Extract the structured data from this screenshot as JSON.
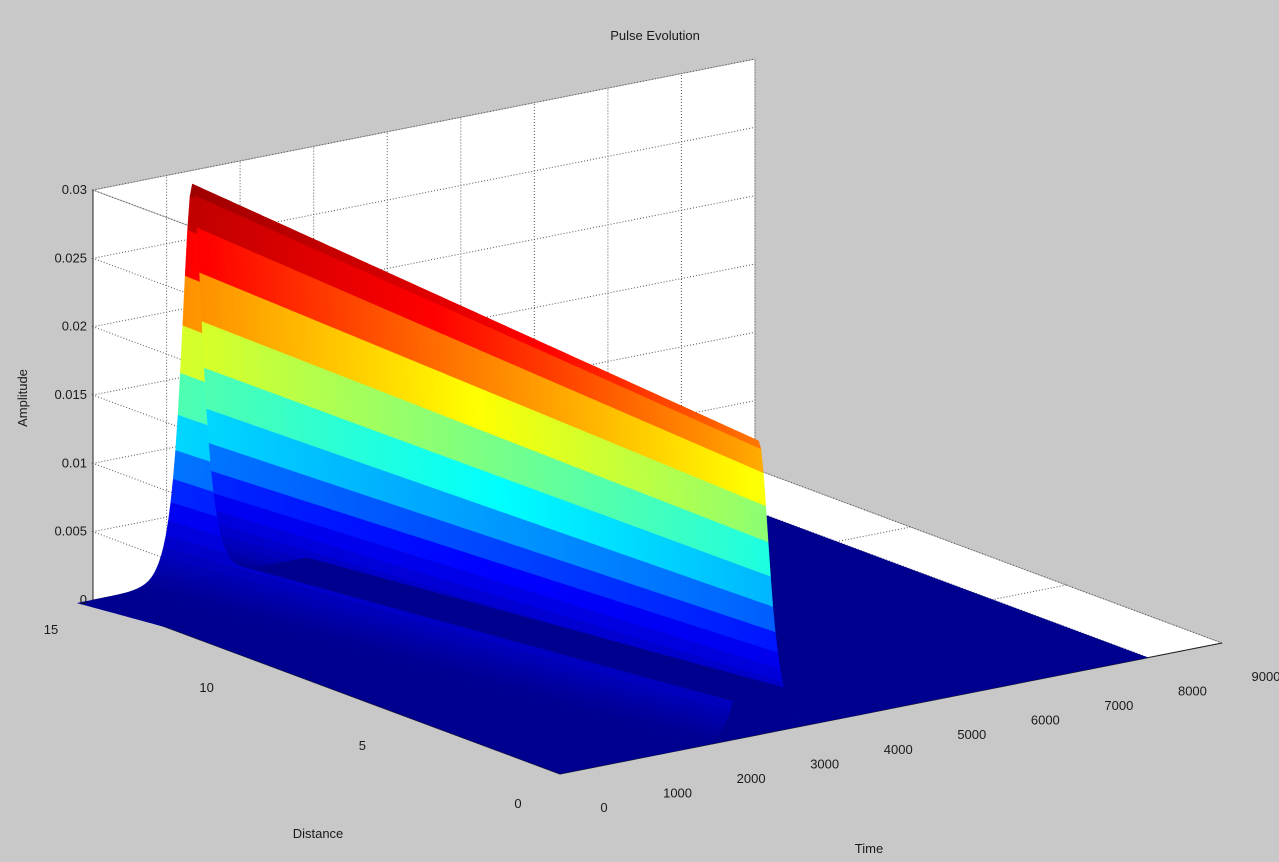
{
  "chart_data": {
    "type": "surface",
    "title": "Pulse Evolution",
    "xlabel": "Time",
    "ylabel": "Distance",
    "zlabel": "Amplitude",
    "xlim": [
      0,
      9000
    ],
    "ylim": [
      0,
      15
    ],
    "zlim": [
      0,
      0.03
    ],
    "x_ticks": [
      "0",
      "1000",
      "2000",
      "3000",
      "4000",
      "5000",
      "6000",
      "7000",
      "8000",
      "9000"
    ],
    "y_ticks": [
      "0",
      "5",
      "10",
      "15"
    ],
    "z_ticks": [
      "0",
      "0.005",
      "0.01",
      "0.015",
      "0.02",
      "0.025",
      "0.03"
    ],
    "grid": true,
    "colormap": "jet",
    "colormap_colors": [
      "#00008f",
      "#0000ff",
      "#00ffff",
      "#ffff00",
      "#ff0000",
      "#800000"
    ],
    "surface": {
      "time_range": [
        0,
        8000
      ],
      "distance_range": [
        0,
        15
      ],
      "pulse_center_time_at_distance_0": 2700,
      "pulse_center_time_at_distance_15": 1350,
      "pulse_width_time": 130,
      "peak_amplitude_at_distance_0": 0.0215,
      "peak_amplitude_at_distance_15": 0.029
    }
  }
}
